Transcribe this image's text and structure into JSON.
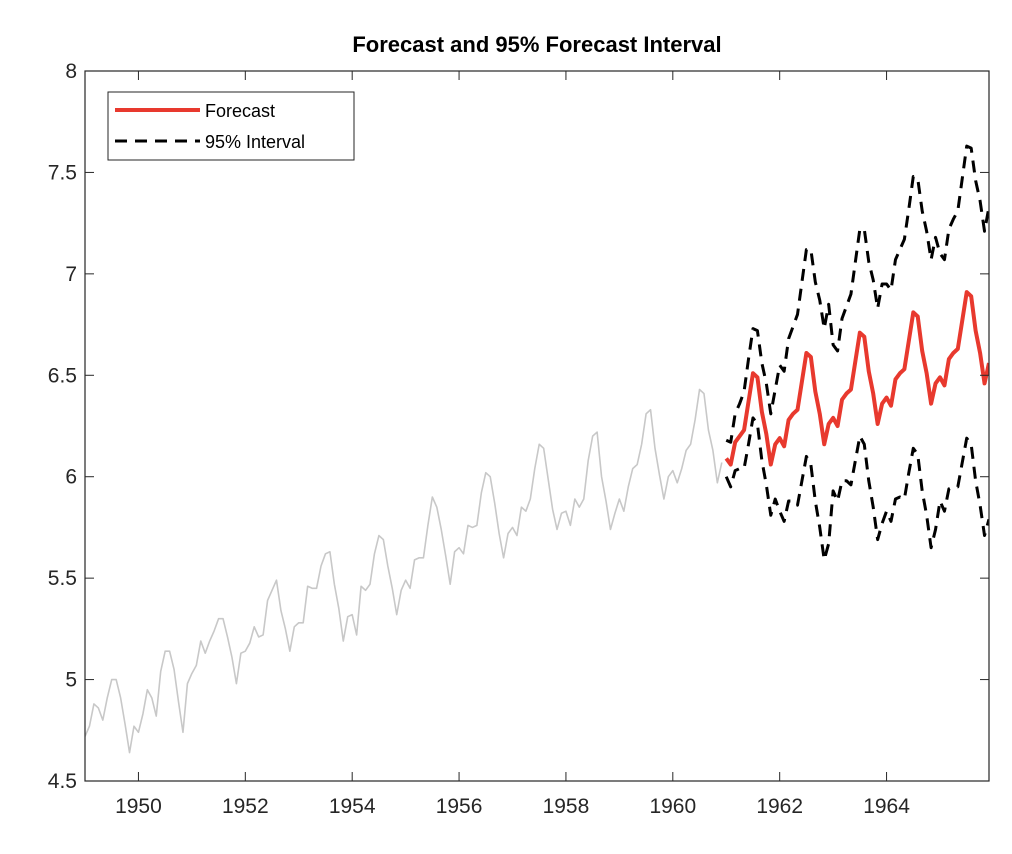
{
  "chart_data": {
    "type": "line",
    "title": "Forecast and 95% Forecast Interval",
    "xlabel": "",
    "ylabel": "",
    "xlim": [
      1949.0,
      1965.917
    ],
    "ylim": [
      4.5,
      8
    ],
    "xticks": [
      1950,
      1952,
      1954,
      1956,
      1958,
      1960,
      1962,
      1964
    ],
    "yticks": [
      4.5,
      5,
      5.5,
      6,
      6.5,
      7,
      7.5,
      8
    ],
    "xtick_labels": [
      "1950",
      "1952",
      "1954",
      "1956",
      "1958",
      "1960",
      "1962",
      "1964"
    ],
    "ytick_labels": [
      "4.5",
      "5",
      "5.5",
      "6",
      "6.5",
      "7",
      "7.5",
      "8"
    ],
    "grid": false,
    "legend_position": "top-left",
    "legend": [
      "Forecast",
      "95% Interval"
    ],
    "colors": {
      "observed": "#c8c8c8",
      "forecast": "#e8392e",
      "interval": "#000000"
    },
    "observed": {
      "start": 1949.0,
      "step": 0.08333333,
      "values": [
        4.72,
        4.77,
        4.88,
        4.86,
        4.8,
        4.91,
        5.0,
        5.0,
        4.91,
        4.78,
        4.64,
        4.77,
        4.74,
        4.83,
        4.95,
        4.91,
        4.82,
        5.04,
        5.14,
        5.14,
        5.05,
        4.89,
        4.74,
        4.98,
        5.03,
        5.07,
        5.19,
        5.13,
        5.19,
        5.24,
        5.3,
        5.3,
        5.21,
        5.11,
        4.98,
        5.13,
        5.14,
        5.18,
        5.26,
        5.21,
        5.22,
        5.39,
        5.44,
        5.49,
        5.34,
        5.25,
        5.14,
        5.26,
        5.28,
        5.28,
        5.46,
        5.45,
        5.45,
        5.56,
        5.62,
        5.63,
        5.47,
        5.35,
        5.19,
        5.31,
        5.32,
        5.22,
        5.46,
        5.44,
        5.47,
        5.62,
        5.71,
        5.69,
        5.56,
        5.45,
        5.32,
        5.44,
        5.49,
        5.45,
        5.59,
        5.6,
        5.6,
        5.76,
        5.9,
        5.85,
        5.74,
        5.61,
        5.47,
        5.63,
        5.65,
        5.62,
        5.76,
        5.75,
        5.76,
        5.92,
        6.02,
        6.0,
        5.87,
        5.72,
        5.6,
        5.72,
        5.75,
        5.71,
        5.85,
        5.83,
        5.89,
        6.04,
        6.16,
        6.14,
        5.99,
        5.84,
        5.74,
        5.82,
        5.83,
        5.76,
        5.89,
        5.85,
        5.89,
        6.08,
        6.2,
        6.22,
        6.0,
        5.88,
        5.74,
        5.82,
        5.89,
        5.83,
        5.95,
        6.04,
        6.06,
        6.16,
        6.31,
        6.33,
        6.14,
        6.01,
        5.89,
        6.0,
        6.03,
        5.97,
        6.04,
        6.13,
        6.16,
        6.28,
        6.43,
        6.41,
        6.23,
        6.13,
        5.97,
        6.07
      ]
    },
    "series": [
      {
        "name": "Forecast",
        "start": 1961.0,
        "step": 0.08333333,
        "values": [
          6.09,
          6.06,
          6.17,
          6.2,
          6.23,
          6.37,
          6.51,
          6.49,
          6.32,
          6.21,
          6.06,
          6.16,
          6.19,
          6.15,
          6.28,
          6.31,
          6.33,
          6.47,
          6.61,
          6.59,
          6.42,
          6.31,
          6.16,
          6.26,
          6.29,
          6.25,
          6.38,
          6.41,
          6.43,
          6.57,
          6.71,
          6.69,
          6.52,
          6.41,
          6.26,
          6.36,
          6.39,
          6.35,
          6.48,
          6.51,
          6.53,
          6.67,
          6.81,
          6.79,
          6.62,
          6.51,
          6.36,
          6.46,
          6.49,
          6.45,
          6.58,
          6.61,
          6.63,
          6.77,
          6.91,
          6.89,
          6.72,
          6.61,
          6.46,
          6.56
        ]
      },
      {
        "name": "95% Interval",
        "bound": "upper",
        "start": 1961.0,
        "step": 0.08333333,
        "values": [
          6.18,
          6.17,
          6.31,
          6.36,
          6.42,
          6.58,
          6.73,
          6.72,
          6.56,
          6.46,
          6.31,
          6.43,
          6.55,
          6.52,
          6.68,
          6.74,
          6.8,
          6.96,
          7.12,
          7.12,
          6.96,
          6.87,
          6.73,
          6.85,
          6.65,
          6.62,
          6.78,
          6.84,
          6.9,
          7.06,
          7.22,
          7.22,
          7.06,
          6.97,
          6.83,
          6.95,
          6.95,
          6.92,
          7.07,
          7.12,
          7.17,
          7.32,
          7.48,
          7.47,
          7.31,
          7.21,
          7.07,
          7.18,
          7.1,
          7.07,
          7.22,
          7.27,
          7.31,
          7.47,
          7.63,
          7.62,
          7.46,
          7.36,
          7.21,
          7.33
        ]
      },
      {
        "name": "95% Interval",
        "bound": "lower",
        "start": 1961.0,
        "step": 0.08333333,
        "values": [
          6.0,
          5.95,
          6.03,
          6.04,
          6.04,
          6.16,
          6.29,
          6.26,
          6.08,
          5.96,
          5.81,
          5.89,
          5.83,
          5.78,
          5.88,
          5.88,
          5.86,
          5.98,
          6.1,
          6.06,
          5.88,
          5.75,
          5.59,
          5.67,
          5.93,
          5.88,
          5.98,
          5.98,
          5.96,
          6.08,
          6.2,
          6.16,
          5.98,
          5.85,
          5.69,
          5.77,
          5.83,
          5.78,
          5.89,
          5.9,
          5.89,
          6.02,
          6.14,
          6.11,
          5.93,
          5.81,
          5.65,
          5.74,
          5.88,
          5.83,
          5.94,
          5.95,
          5.95,
          6.07,
          6.19,
          6.16,
          5.98,
          5.86,
          5.71,
          5.79
        ]
      }
    ]
  }
}
